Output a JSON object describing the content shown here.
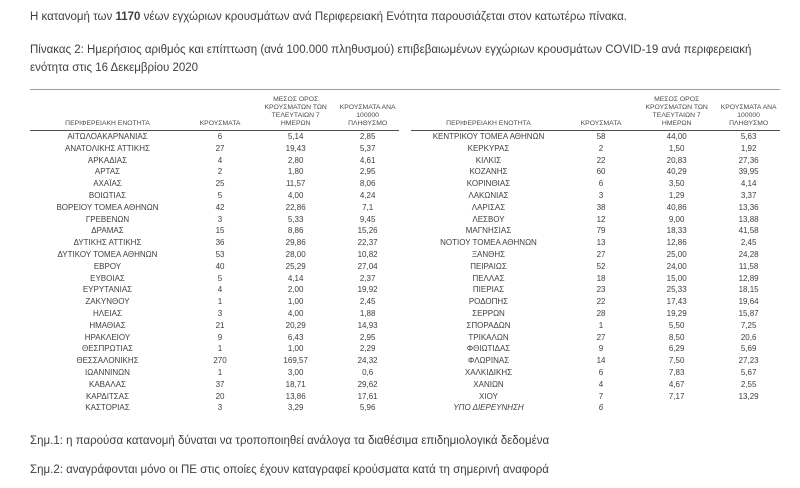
{
  "intro": {
    "prefix": "Η κατανομή των ",
    "count": "1170",
    "suffix": " νέων εγχώριων κρουσμάτων ανά Περιφερειακή Ενότητα παρουσιάζεται στον κατωτέρω πίνακα."
  },
  "caption": "Πίνακας 2:  Ημερήσιος αριθμός και επίπτωση (ανά 100.000 πληθυσμού) επιβεβαιωμένων εγχώριων κρουσμάτων COVID-19 ανά περιφερειακή ενότητα στις 16 Δεκεμβρίου 2020",
  "table": {
    "headers": [
      "ΠΕΡΙΦΕΡΕΙΑΚΗ ΕΝΟΤΗΤΑ",
      "ΚΡΟΥΣΜΑΤΑ",
      "ΜΕΣΟΣ ΟΡΟΣ ΚΡΟΥΣΜΑΤΩΝ ΤΩΝ ΤΕΛΕΥΤΑΙΩΝ 7 ΗΜΕΡΩΝ",
      "ΚΡΟΥΣΜΑΤΑ ΑΝΑ 100000 ΠΛΗΘΥΣΜΟ"
    ],
    "left_rows": [
      {
        "name": "ΑΙΤΩΛΟΑΚΑΡΝΑΝΙΑΣ",
        "cases": "6",
        "avg7": "5,14",
        "per100k": "2,85"
      },
      {
        "name": "ΑΝΑΤΟΛΙΚΗΣ ΑΤΤΙΚΗΣ",
        "cases": "27",
        "avg7": "19,43",
        "per100k": "5,37"
      },
      {
        "name": "ΑΡΚΑΔΙΑΣ",
        "cases": "4",
        "avg7": "2,80",
        "per100k": "4,61"
      },
      {
        "name": "ΑΡΤΑΣ",
        "cases": "2",
        "avg7": "1,80",
        "per100k": "2,95"
      },
      {
        "name": "ΑΧΑΪΑΣ",
        "cases": "25",
        "avg7": "11,57",
        "per100k": "8,06"
      },
      {
        "name": "ΒΟΙΩΤΙΑΣ",
        "cases": "5",
        "avg7": "4,00",
        "per100k": "4,24"
      },
      {
        "name": "ΒΟΡΕΙΟΥ ΤΟΜΕΑ ΑΘΗΝΩΝ",
        "cases": "42",
        "avg7": "22,86",
        "per100k": "7,1"
      },
      {
        "name": "ΓΡΕΒΕΝΩΝ",
        "cases": "3",
        "avg7": "5,33",
        "per100k": "9,45"
      },
      {
        "name": "ΔΡΑΜΑΣ",
        "cases": "15",
        "avg7": "8,86",
        "per100k": "15,26"
      },
      {
        "name": "ΔΥΤΙΚΗΣ ΑΤΤΙΚΗΣ",
        "cases": "36",
        "avg7": "29,86",
        "per100k": "22,37"
      },
      {
        "name": "ΔΥΤΙΚΟΥ ΤΟΜΕΑ ΑΘΗΝΩΝ",
        "cases": "53",
        "avg7": "28,00",
        "per100k": "10,82"
      },
      {
        "name": "ΕΒΡΟΥ",
        "cases": "40",
        "avg7": "25,29",
        "per100k": "27,04"
      },
      {
        "name": "ΕΥΒΟΙΑΣ",
        "cases": "5",
        "avg7": "4,14",
        "per100k": "2,37"
      },
      {
        "name": "ΕΥΡΥΤΑΝΙΑΣ",
        "cases": "4",
        "avg7": "2,00",
        "per100k": "19,92"
      },
      {
        "name": "ΖΑΚΥΝΘΟΥ",
        "cases": "1",
        "avg7": "1,00",
        "per100k": "2,45"
      },
      {
        "name": "ΗΛΕΙΑΣ",
        "cases": "3",
        "avg7": "4,00",
        "per100k": "1,88"
      },
      {
        "name": "ΗΜΑΘΙΑΣ",
        "cases": "21",
        "avg7": "20,29",
        "per100k": "14,93"
      },
      {
        "name": "ΗΡΑΚΛΕΙΟΥ",
        "cases": "9",
        "avg7": "6,43",
        "per100k": "2,95"
      },
      {
        "name": "ΘΕΣΠΡΩΤΙΑΣ",
        "cases": "1",
        "avg7": "1,00",
        "per100k": "2,29"
      },
      {
        "name": "ΘΕΣΣΑΛΟΝΙΚΗΣ",
        "cases": "270",
        "avg7": "169,57",
        "per100k": "24,32"
      },
      {
        "name": "ΙΩΑΝΝΙΝΩΝ",
        "cases": "1",
        "avg7": "3,00",
        "per100k": "0,6"
      },
      {
        "name": "ΚΑΒΑΛΑΣ",
        "cases": "37",
        "avg7": "18,71",
        "per100k": "29,62"
      },
      {
        "name": "ΚΑΡΔΙΤΣΑΣ",
        "cases": "20",
        "avg7": "13,86",
        "per100k": "17,61"
      },
      {
        "name": "ΚΑΣΤΟΡΙΑΣ",
        "cases": "3",
        "avg7": "3,29",
        "per100k": "5,96"
      }
    ],
    "right_rows": [
      {
        "name": "ΚΕΝΤΡΙΚΟΥ ΤΟΜΕΑ ΑΘΗΝΩΝ",
        "cases": "58",
        "avg7": "44,00",
        "per100k": "5,63"
      },
      {
        "name": "ΚΕΡΚΥΡΑΣ",
        "cases": "2",
        "avg7": "1,50",
        "per100k": "1,92"
      },
      {
        "name": "ΚΙΛΚΙΣ",
        "cases": "22",
        "avg7": "20,83",
        "per100k": "27,36"
      },
      {
        "name": "ΚΟΖΑΝΗΣ",
        "cases": "60",
        "avg7": "40,29",
        "per100k": "39,95"
      },
      {
        "name": "ΚΟΡΙΝΘΙΑΣ",
        "cases": "6",
        "avg7": "3,50",
        "per100k": "4,14"
      },
      {
        "name": "ΛΑΚΩΝΙΑΣ",
        "cases": "3",
        "avg7": "1,29",
        "per100k": "3,37"
      },
      {
        "name": "ΛΑΡΙΣΑΣ",
        "cases": "38",
        "avg7": "40,86",
        "per100k": "13,36"
      },
      {
        "name": "ΛΕΣΒΟΥ",
        "cases": "12",
        "avg7": "9,00",
        "per100k": "13,88"
      },
      {
        "name": "ΜΑΓΝΗΣΙΑΣ",
        "cases": "79",
        "avg7": "18,33",
        "per100k": "41,58"
      },
      {
        "name": "ΝΟΤΙΟΥ ΤΟΜΕΑ ΑΘΗΝΩΝ",
        "cases": "13",
        "avg7": "12,86",
        "per100k": "2,45"
      },
      {
        "name": "ΞΑΝΘΗΣ",
        "cases": "27",
        "avg7": "25,00",
        "per100k": "24,28"
      },
      {
        "name": "ΠΕΙΡΑΙΩΣ",
        "cases": "52",
        "avg7": "24,00",
        "per100k": "11,58"
      },
      {
        "name": "ΠΕΛΛΑΣ",
        "cases": "18",
        "avg7": "15,00",
        "per100k": "12,89"
      },
      {
        "name": "ΠΙΕΡΙΑΣ",
        "cases": "23",
        "avg7": "25,33",
        "per100k": "18,15"
      },
      {
        "name": "ΡΟΔΟΠΗΣ",
        "cases": "22",
        "avg7": "17,43",
        "per100k": "19,64"
      },
      {
        "name": "ΣΕΡΡΩΝ",
        "cases": "28",
        "avg7": "19,29",
        "per100k": "15,87"
      },
      {
        "name": "ΣΠΟΡΑΔΩΝ",
        "cases": "1",
        "avg7": "5,50",
        "per100k": "7,25"
      },
      {
        "name": "ΤΡΙΚΑΛΩΝ",
        "cases": "27",
        "avg7": "8,50",
        "per100k": "20,6"
      },
      {
        "name": "ΦΘΙΩΤΙΔΑΣ",
        "cases": "9",
        "avg7": "6,29",
        "per100k": "5,69"
      },
      {
        "name": "ΦΛΩΡΙΝΑΣ",
        "cases": "14",
        "avg7": "7,50",
        "per100k": "27,23"
      },
      {
        "name": "ΧΑΛΚΙΔΙΚΗΣ",
        "cases": "6",
        "avg7": "7,83",
        "per100k": "5,67"
      },
      {
        "name": "ΧΑΝΙΩΝ",
        "cases": "4",
        "avg7": "4,67",
        "per100k": "2,55"
      },
      {
        "name": "ΧΙΟΥ",
        "cases": "7",
        "avg7": "7,17",
        "per100k": "13,29"
      },
      {
        "name": "ΥΠΟ ΔΙΕΡΕΥΝΗΣΗ",
        "cases": "6",
        "avg7": "",
        "per100k": "",
        "italic": true
      }
    ]
  },
  "notes": {
    "note1": "Σημ.1: η παρούσα κατανομή δύναται να τροποποιηθεί ανάλογα τα διαθέσιμα επιδημιολογικά δεδομένα",
    "note2": "Σημ.2: αναγράφονται μόνο οι ΠΕ στις οποίες έχουν καταγραφεί κρούσματα κατά τη σημερινή αναφορά"
  },
  "colors": {
    "text": "#3f3f3f",
    "rule_top": "#9d9d9d",
    "rule_header": "#4d4d4d"
  }
}
